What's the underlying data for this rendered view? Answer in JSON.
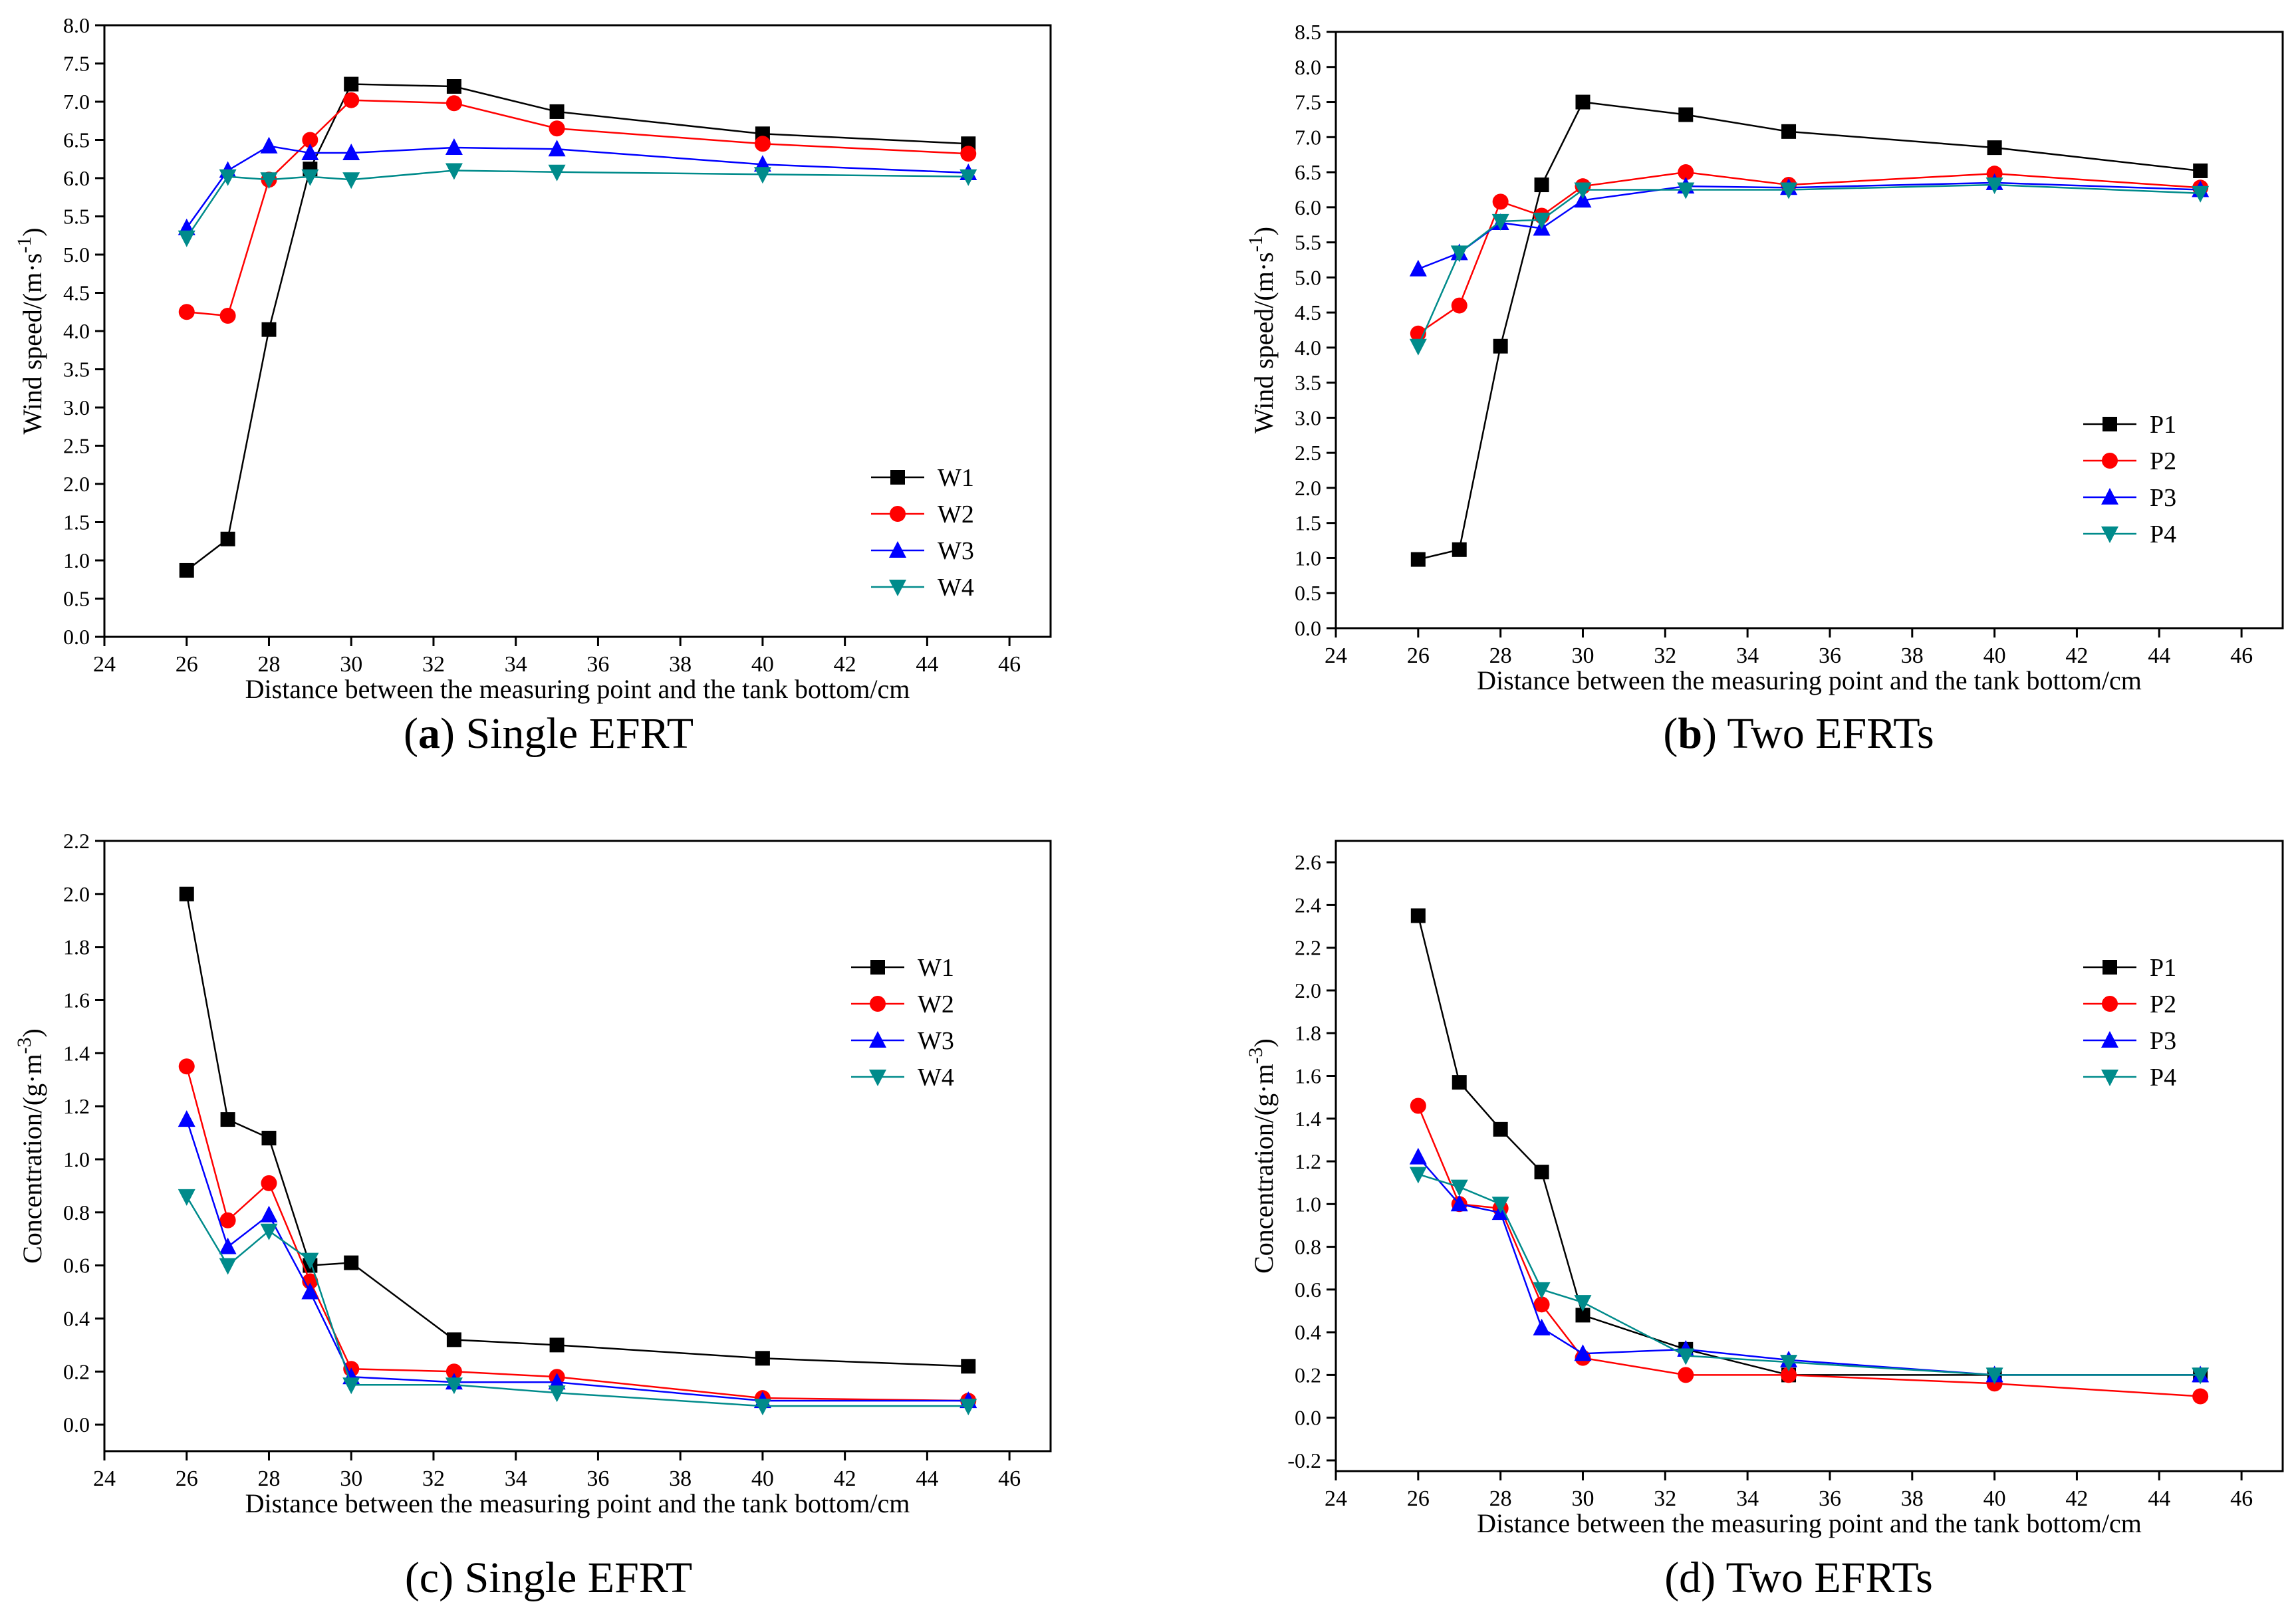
{
  "chart_data": [
    {
      "type": "line",
      "caption_bold": "(a)",
      "caption_rest": " Single EFRT",
      "xlabel": "Distance between the measuring point and the tank bottom/cm",
      "ylabel": "Wind speed/(m·s",
      "ylabel_sup": "-1",
      "ylabel_close": ")",
      "xlim": [
        24,
        47
      ],
      "ylim": [
        0,
        8.0
      ],
      "xticks": [
        24,
        26,
        28,
        30,
        32,
        34,
        36,
        38,
        40,
        42,
        44,
        46
      ],
      "yticks": [
        "0.0",
        "0.5",
        "1.0",
        "1.5",
        "2.0",
        "2.5",
        "3.0",
        "3.5",
        "4.0",
        "4.5",
        "5.0",
        "5.5",
        "6.0",
        "6.5",
        "7.0",
        "7.5",
        "8.0"
      ],
      "x": [
        26,
        27,
        28,
        29,
        30,
        32.5,
        35,
        40,
        45
      ],
      "legend_position": "bottom-right",
      "series": [
        {
          "name": "W1",
          "color": "#000000",
          "marker": "square",
          "values": [
            0.87,
            1.28,
            4.02,
            6.12,
            7.23,
            7.2,
            6.87,
            6.58,
            6.45
          ]
        },
        {
          "name": "W2",
          "color": "#ff0000",
          "marker": "circle",
          "values": [
            4.25,
            4.2,
            5.98,
            6.5,
            7.02,
            6.98,
            6.65,
            6.45,
            6.32
          ]
        },
        {
          "name": "W3",
          "color": "#0000ff",
          "marker": "triangle-up",
          "values": [
            5.35,
            6.1,
            6.42,
            6.33,
            6.33,
            6.4,
            6.38,
            6.18,
            6.07
          ]
        },
        {
          "name": "W4",
          "color": "#008b8b",
          "marker": "triangle-down",
          "values": [
            5.22,
            6.02,
            5.98,
            6.02,
            5.98,
            6.1,
            6.08,
            6.05,
            6.02
          ]
        }
      ]
    },
    {
      "type": "line",
      "caption_bold": "(b)",
      "caption_rest": " Two EFRTs",
      "xlabel": "Distance between the measuring point and the tank bottom/cm",
      "ylabel": "Wind speed/(m·s",
      "ylabel_sup": "-1",
      "ylabel_close": ")",
      "xlim": [
        24,
        47
      ],
      "ylim": [
        0,
        8.5
      ],
      "xticks": [
        24,
        26,
        28,
        30,
        32,
        34,
        36,
        38,
        40,
        42,
        44,
        46
      ],
      "yticks": [
        "0.0",
        "0.5",
        "1.0",
        "1.5",
        "2.0",
        "2.5",
        "3.0",
        "3.5",
        "4.0",
        "4.5",
        "5.0",
        "5.5",
        "6.0",
        "6.5",
        "7.0",
        "7.5",
        "8.0",
        "8.5"
      ],
      "x": [
        26,
        27,
        28,
        29,
        30,
        32.5,
        35,
        40,
        45
      ],
      "legend_position": "right",
      "series": [
        {
          "name": "P1",
          "color": "#000000",
          "marker": "square",
          "values": [
            0.98,
            1.12,
            4.02,
            6.32,
            7.5,
            7.32,
            7.08,
            6.85,
            6.52
          ]
        },
        {
          "name": "P2",
          "color": "#ff0000",
          "marker": "circle",
          "values": [
            4.2,
            4.6,
            6.08,
            5.88,
            6.3,
            6.5,
            6.32,
            6.48,
            6.28
          ]
        },
        {
          "name": "P3",
          "color": "#0000ff",
          "marker": "triangle-up",
          "values": [
            5.12,
            5.35,
            5.78,
            5.7,
            6.1,
            6.3,
            6.28,
            6.35,
            6.25
          ]
        },
        {
          "name": "P4",
          "color": "#008b8b",
          "marker": "triangle-down",
          "values": [
            4.02,
            5.35,
            5.8,
            5.82,
            6.25,
            6.25,
            6.25,
            6.32,
            6.2
          ]
        }
      ]
    },
    {
      "type": "line",
      "caption_bold": "",
      "caption_rest": "(c) Single EFRT",
      "xlabel": "Distance between the measuring point and the tank bottom/cm",
      "ylabel": "Concentration/(g·m",
      "ylabel_sup": "-3",
      "ylabel_close": ")",
      "xlim": [
        24,
        47
      ],
      "ylim": [
        -0.1,
        2.2
      ],
      "xticks": [
        24,
        26,
        28,
        30,
        32,
        34,
        36,
        38,
        40,
        42,
        44,
        46
      ],
      "yticks": [
        "0.0",
        "0.2",
        "0.4",
        "0.6",
        "0.8",
        "1.0",
        "1.2",
        "1.4",
        "1.6",
        "1.8",
        "2.0",
        "2.2"
      ],
      "x": [
        26,
        27,
        28,
        29,
        30,
        32.5,
        35,
        40,
        45
      ],
      "legend_position": "top-right",
      "series": [
        {
          "name": "W1",
          "color": "#000000",
          "marker": "square",
          "values": [
            2.0,
            1.15,
            1.08,
            0.6,
            0.61,
            0.32,
            0.3,
            0.25,
            0.22
          ]
        },
        {
          "name": "W2",
          "color": "#ff0000",
          "marker": "circle",
          "values": [
            1.35,
            0.77,
            0.91,
            0.54,
            0.21,
            0.2,
            0.18,
            0.1,
            0.09
          ]
        },
        {
          "name": "W3",
          "color": "#0000ff",
          "marker": "triangle-up",
          "values": [
            1.15,
            0.67,
            0.79,
            0.5,
            0.18,
            0.16,
            0.16,
            0.09,
            0.09
          ]
        },
        {
          "name": "W4",
          "color": "#008b8b",
          "marker": "triangle-down",
          "values": [
            0.86,
            0.6,
            0.73,
            0.62,
            0.15,
            0.15,
            0.12,
            0.07,
            0.07
          ]
        }
      ]
    },
    {
      "type": "line",
      "caption_bold": "",
      "caption_rest": "(d) Two EFRTs",
      "xlabel": "Distance between the measuring point and the tank bottom/cm",
      "ylabel": "Concentration/(g·m",
      "ylabel_sup": "-3",
      "ylabel_close": ")",
      "xlim": [
        24,
        47
      ],
      "ylim": [
        -0.25,
        2.7
      ],
      "xticks": [
        24,
        26,
        28,
        30,
        32,
        34,
        36,
        38,
        40,
        42,
        44,
        46
      ],
      "yticks": [
        "-0.2",
        "0.0",
        "0.2",
        "0.4",
        "0.6",
        "0.8",
        "1.0",
        "1.2",
        "1.4",
        "1.6",
        "1.8",
        "2.0",
        "2.2",
        "2.4",
        "2.6"
      ],
      "x": [
        26,
        27,
        28,
        29,
        30,
        32.5,
        35,
        40,
        45
      ],
      "legend_position": "top-right",
      "series": [
        {
          "name": "P1",
          "color": "#000000",
          "marker": "square",
          "values": [
            2.35,
            1.57,
            1.35,
            1.15,
            0.48,
            0.32,
            0.2,
            0.2,
            0.2
          ]
        },
        {
          "name": "P2",
          "color": "#ff0000",
          "marker": "circle",
          "values": [
            1.46,
            1.0,
            0.98,
            0.53,
            0.28,
            0.2,
            0.2,
            0.16,
            0.1
          ]
        },
        {
          "name": "P3",
          "color": "#0000ff",
          "marker": "triangle-up",
          "values": [
            1.22,
            1.0,
            0.96,
            0.42,
            0.3,
            0.32,
            0.27,
            0.2,
            0.2
          ]
        },
        {
          "name": "P4",
          "color": "#008b8b",
          "marker": "triangle-down",
          "values": [
            1.14,
            1.08,
            1.0,
            0.6,
            0.54,
            0.29,
            0.26,
            0.2,
            0.2
          ]
        }
      ]
    }
  ]
}
